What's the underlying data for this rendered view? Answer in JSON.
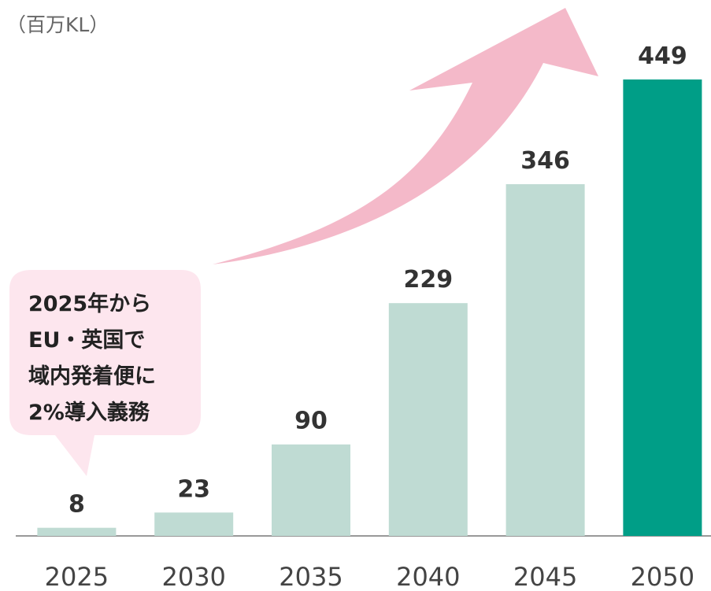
{
  "chart_data": {
    "type": "bar",
    "unit_label": "（百万KL）",
    "categories": [
      "2025",
      "2030",
      "2035",
      "2040",
      "2045",
      "2050"
    ],
    "values": [
      8,
      23,
      90,
      229,
      346,
      449
    ],
    "colors": [
      "#bfdbd3",
      "#bfdbd3",
      "#bfdbd3",
      "#bfdbd3",
      "#bfdbd3",
      "#009e87"
    ],
    "annotation": [
      "2025年から",
      "EU・英国で",
      "域内発着便に",
      "2%導入義務"
    ]
  }
}
